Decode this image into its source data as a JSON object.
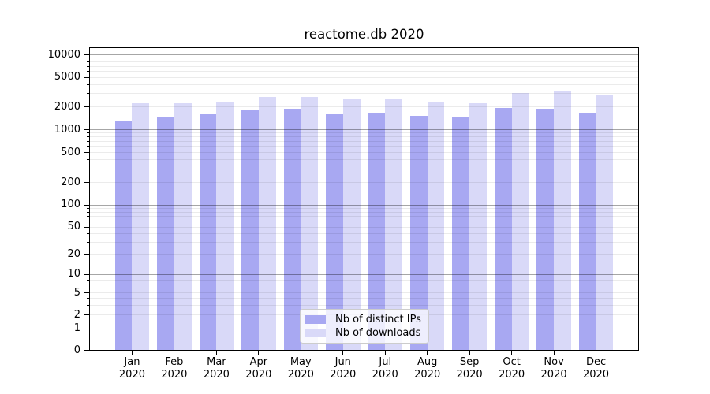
{
  "title": "reactome.db 2020",
  "chart_data": {
    "type": "bar",
    "title": "reactome.db 2020",
    "categories": [
      "Jan",
      "Feb",
      "Mar",
      "Apr",
      "May",
      "Jun",
      "Jul",
      "Aug",
      "Sep",
      "Oct",
      "Nov",
      "Dec"
    ],
    "year_label": "2020",
    "series": [
      {
        "key": "distinct-ips",
        "name": "Nb of distinct IPs",
        "color": "#a8a8f2",
        "values": [
          1310,
          1420,
          1570,
          1770,
          1840,
          1590,
          1630,
          1490,
          1430,
          1890,
          1880,
          1600
        ]
      },
      {
        "key": "downloads",
        "name": "Nb of downloads",
        "color": "#d9d9f8",
        "values": [
          2230,
          2210,
          2280,
          2710,
          2710,
          2480,
          2480,
          2250,
          2200,
          3030,
          3180,
          2890
        ]
      }
    ],
    "xlabel": "",
    "ylabel": "",
    "yscale": "symlog",
    "yticks": [
      0,
      1,
      2,
      5,
      10,
      20,
      50,
      100,
      200,
      500,
      1000,
      2000,
      5000,
      10000
    ],
    "ylim": [
      0,
      12400
    ],
    "grid": true,
    "legend_position": "lower center"
  }
}
